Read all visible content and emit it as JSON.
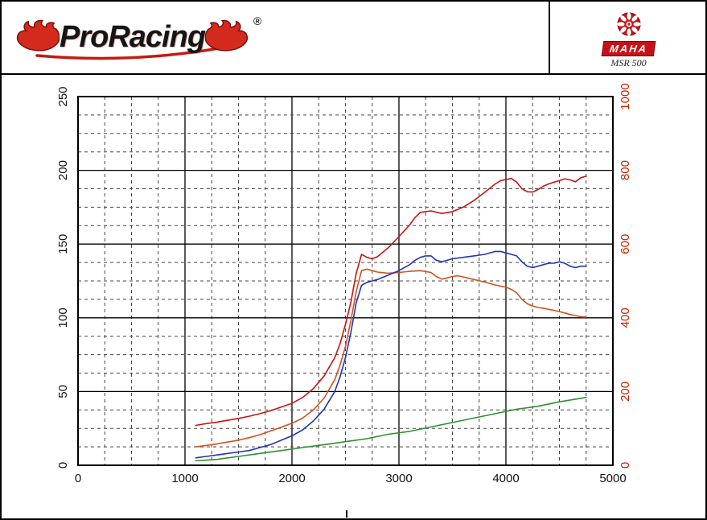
{
  "header": {
    "brand": "ProRacing",
    "registered": "®",
    "device": {
      "logo_text": "MAHA",
      "model": "MSR 500"
    }
  },
  "chart_data": {
    "type": "line",
    "title": "",
    "xlabel": "",
    "ylabel_left": "",
    "ylabel_right": "",
    "grid": {
      "minor_color": "#444444",
      "major_color": "#000000",
      "dash": "4 4"
    },
    "x_axis": {
      "min": 0,
      "max": 5000,
      "ticks": [
        0,
        1000,
        2000,
        3000,
        4000,
        5000
      ],
      "minor_step": 250
    },
    "y_left": {
      "min": 0,
      "max": 250,
      "ticks": [
        0,
        50,
        100,
        150,
        200,
        250
      ],
      "minor_step": 12.5,
      "color": "#111111"
    },
    "y_right": {
      "min": 0,
      "max": 1000,
      "ticks": [
        0,
        200,
        400,
        600,
        800,
        1000
      ],
      "minor_step": 50,
      "color": "#cc2200"
    },
    "series": [
      {
        "name": "red-upper",
        "axis": "right",
        "color": "#c81414",
        "points": [
          [
            1100,
            108
          ],
          [
            1200,
            113
          ],
          [
            1300,
            117
          ],
          [
            1400,
            122
          ],
          [
            1500,
            127
          ],
          [
            1600,
            133
          ],
          [
            1700,
            140
          ],
          [
            1800,
            148
          ],
          [
            1900,
            158
          ],
          [
            2000,
            168
          ],
          [
            2100,
            184
          ],
          [
            2200,
            208
          ],
          [
            2300,
            242
          ],
          [
            2400,
            292
          ],
          [
            2450,
            330
          ],
          [
            2500,
            382
          ],
          [
            2550,
            442
          ],
          [
            2600,
            520
          ],
          [
            2650,
            572
          ],
          [
            2700,
            564
          ],
          [
            2750,
            560
          ],
          [
            2800,
            566
          ],
          [
            2900,
            590
          ],
          [
            3000,
            620
          ],
          [
            3100,
            652
          ],
          [
            3150,
            672
          ],
          [
            3200,
            686
          ],
          [
            3300,
            690
          ],
          [
            3400,
            683
          ],
          [
            3500,
            688
          ],
          [
            3600,
            700
          ],
          [
            3700,
            718
          ],
          [
            3800,
            740
          ],
          [
            3900,
            763
          ],
          [
            3950,
            772
          ],
          [
            4050,
            778
          ],
          [
            4100,
            768
          ],
          [
            4150,
            750
          ],
          [
            4200,
            742
          ],
          [
            4250,
            741
          ],
          [
            4300,
            748
          ],
          [
            4350,
            757
          ],
          [
            4400,
            763
          ],
          [
            4450,
            768
          ],
          [
            4500,
            772
          ],
          [
            4550,
            777
          ],
          [
            4600,
            774
          ],
          [
            4650,
            769
          ],
          [
            4700,
            780
          ],
          [
            4750,
            784
          ]
        ]
      },
      {
        "name": "orange-lower",
        "axis": "right",
        "color": "#d0521e",
        "points": [
          [
            1100,
            50
          ],
          [
            1200,
            54
          ],
          [
            1300,
            58
          ],
          [
            1400,
            63
          ],
          [
            1500,
            68
          ],
          [
            1600,
            75
          ],
          [
            1700,
            83
          ],
          [
            1800,
            93
          ],
          [
            1900,
            103
          ],
          [
            2000,
            114
          ],
          [
            2100,
            128
          ],
          [
            2200,
            150
          ],
          [
            2300,
            182
          ],
          [
            2400,
            232
          ],
          [
            2450,
            272
          ],
          [
            2500,
            322
          ],
          [
            2550,
            392
          ],
          [
            2600,
            470
          ],
          [
            2650,
            528
          ],
          [
            2700,
            532
          ],
          [
            2750,
            528
          ],
          [
            2800,
            524
          ],
          [
            2900,
            521
          ],
          [
            3000,
            523
          ],
          [
            3100,
            526
          ],
          [
            3200,
            528
          ],
          [
            3300,
            523
          ],
          [
            3350,
            512
          ],
          [
            3400,
            505
          ],
          [
            3450,
            508
          ],
          [
            3500,
            512
          ],
          [
            3550,
            514
          ],
          [
            3600,
            511
          ],
          [
            3700,
            504
          ],
          [
            3800,
            497
          ],
          [
            3900,
            489
          ],
          [
            4000,
            483
          ],
          [
            4050,
            477
          ],
          [
            4100,
            468
          ],
          [
            4150,
            450
          ],
          [
            4200,
            438
          ],
          [
            4250,
            432
          ],
          [
            4300,
            428
          ],
          [
            4350,
            426
          ],
          [
            4400,
            423
          ],
          [
            4450,
            420
          ],
          [
            4500,
            417
          ],
          [
            4550,
            413
          ],
          [
            4600,
            409
          ],
          [
            4650,
            406
          ],
          [
            4700,
            403
          ],
          [
            4750,
            402
          ]
        ]
      },
      {
        "name": "blue",
        "axis": "left",
        "color": "#2233bb",
        "points": [
          [
            1100,
            5
          ],
          [
            1200,
            6
          ],
          [
            1300,
            7
          ],
          [
            1400,
            8
          ],
          [
            1500,
            9
          ],
          [
            1600,
            10
          ],
          [
            1700,
            12
          ],
          [
            1800,
            14
          ],
          [
            1900,
            17
          ],
          [
            2000,
            20
          ],
          [
            2100,
            24
          ],
          [
            2200,
            30
          ],
          [
            2300,
            38
          ],
          [
            2400,
            50
          ],
          [
            2450,
            60
          ],
          [
            2500,
            73
          ],
          [
            2550,
            90
          ],
          [
            2600,
            110
          ],
          [
            2650,
            122
          ],
          [
            2700,
            124
          ],
          [
            2750,
            125
          ],
          [
            2800,
            126
          ],
          [
            2900,
            129
          ],
          [
            3000,
            132
          ],
          [
            3100,
            136
          ],
          [
            3150,
            139
          ],
          [
            3200,
            141
          ],
          [
            3250,
            142
          ],
          [
            3300,
            142
          ],
          [
            3350,
            139
          ],
          [
            3400,
            138
          ],
          [
            3450,
            139
          ],
          [
            3500,
            140
          ],
          [
            3600,
            141
          ],
          [
            3700,
            142
          ],
          [
            3800,
            143
          ],
          [
            3900,
            145
          ],
          [
            3950,
            145
          ],
          [
            4000,
            144
          ],
          [
            4050,
            143
          ],
          [
            4100,
            142
          ],
          [
            4150,
            138
          ],
          [
            4200,
            135
          ],
          [
            4250,
            134
          ],
          [
            4300,
            135
          ],
          [
            4350,
            136
          ],
          [
            4400,
            137
          ],
          [
            4450,
            137
          ],
          [
            4500,
            138
          ],
          [
            4550,
            137
          ],
          [
            4600,
            135
          ],
          [
            4650,
            134
          ],
          [
            4700,
            135
          ],
          [
            4750,
            135
          ]
        ]
      },
      {
        "name": "green",
        "axis": "left",
        "color": "#2f8f2f",
        "points": [
          [
            1100,
            3
          ],
          [
            1300,
            4
          ],
          [
            1500,
            6
          ],
          [
            1700,
            8
          ],
          [
            1900,
            10
          ],
          [
            2100,
            12
          ],
          [
            2300,
            14
          ],
          [
            2500,
            16
          ],
          [
            2700,
            18
          ],
          [
            2900,
            21
          ],
          [
            3100,
            23
          ],
          [
            3300,
            26
          ],
          [
            3500,
            29
          ],
          [
            3700,
            32
          ],
          [
            3900,
            35
          ],
          [
            4100,
            38
          ],
          [
            4300,
            40
          ],
          [
            4500,
            43
          ],
          [
            4750,
            46
          ]
        ]
      }
    ]
  }
}
